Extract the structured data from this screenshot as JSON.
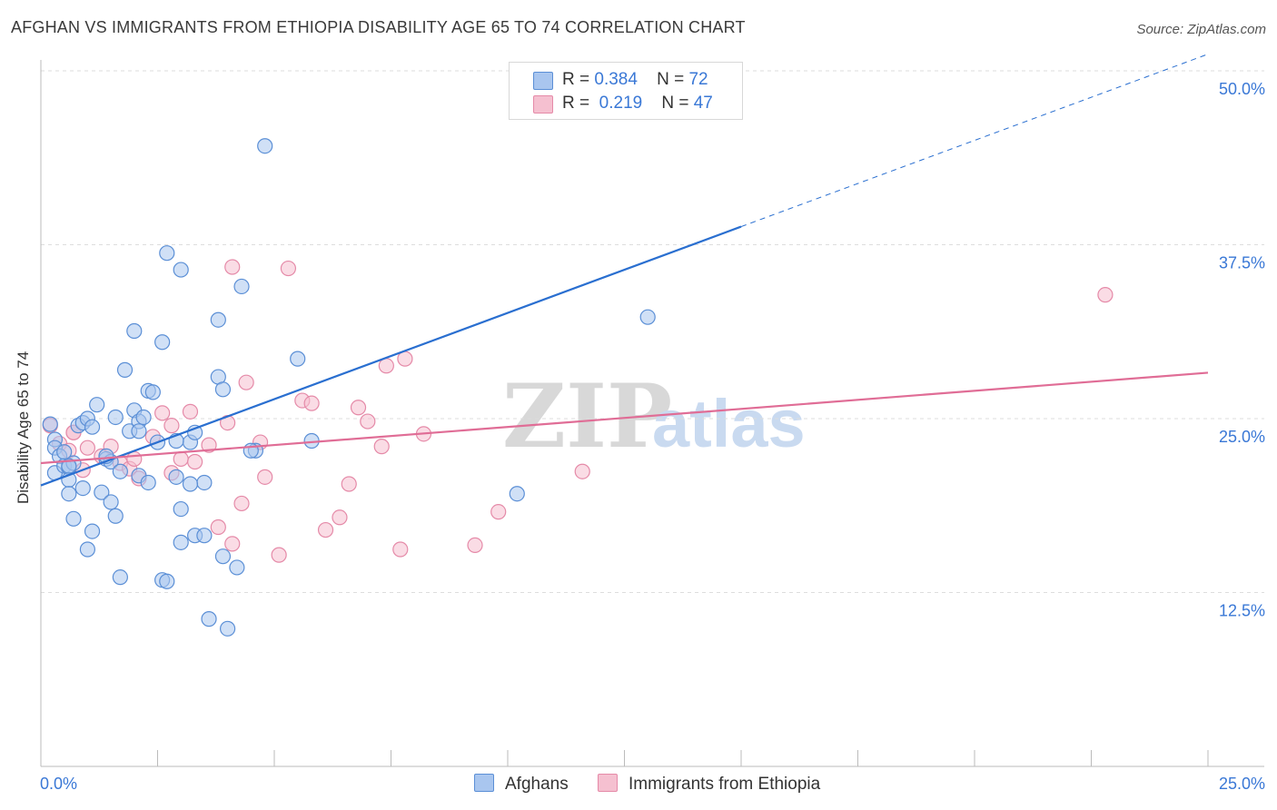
{
  "title": "AFGHAN VS IMMIGRANTS FROM ETHIOPIA DISABILITY AGE 65 TO 74 CORRELATION CHART",
  "source": "Source: ZipAtlas.com",
  "legend": {
    "r_label": "R =",
    "n_label": "N =",
    "afghans": {
      "r": "0.384",
      "n": "72"
    },
    "ethiopia": {
      "r": "0.219",
      "n": "47"
    }
  },
  "colors": {
    "blue_fill": "#a9c6ef",
    "blue_stroke": "#5b8fd6",
    "blue_line": "#2a6fd0",
    "pink_fill": "#f5c0d0",
    "pink_stroke": "#e58aa8",
    "pink_line": "#e06d96",
    "tick_text": "#3a78d6",
    "grid": "#dddddd"
  },
  "chart_data": {
    "type": "scatter",
    "title": "AFGHAN VS IMMIGRANTS FROM ETHIOPIA DISABILITY AGE 65 TO 74 CORRELATION CHART",
    "xlabel": "",
    "ylabel": "Disability Age 65 to 74",
    "xlim": [
      0,
      25
    ],
    "ylim": [
      0,
      50
    ],
    "x_tick_labels": [
      "0.0%",
      "25.0%"
    ],
    "y_ticks": [
      12.5,
      25.0,
      37.5,
      50.0
    ],
    "y_tick_labels": [
      "12.5%",
      "25.0%",
      "37.5%",
      "50.0%"
    ],
    "watermark": {
      "zip": "ZIP",
      "atlas": "atlas"
    },
    "series": [
      {
        "name": "Afghans",
        "color": "#5b8fd6",
        "trend": {
          "x0": 0,
          "y0": 20.2,
          "x1": 15,
          "y1": 38.8,
          "dashed_to_x": 25,
          "dashed_to_y": 51.2
        },
        "points": [
          [
            0.2,
            24.6
          ],
          [
            0.3,
            23.5
          ],
          [
            0.3,
            22.9
          ],
          [
            0.4,
            22.3
          ],
          [
            0.5,
            22.6
          ],
          [
            0.3,
            21.1
          ],
          [
            0.5,
            21.6
          ],
          [
            0.6,
            21.5
          ],
          [
            0.7,
            21.8
          ],
          [
            0.8,
            24.5
          ],
          [
            0.9,
            24.7
          ],
          [
            1.0,
            25.0
          ],
          [
            1.1,
            24.4
          ],
          [
            1.2,
            26.0
          ],
          [
            1.4,
            22.1
          ],
          [
            1.5,
            21.9
          ],
          [
            1.6,
            25.1
          ],
          [
            1.7,
            21.2
          ],
          [
            1.8,
            28.5
          ],
          [
            1.9,
            24.1
          ],
          [
            2.0,
            25.6
          ],
          [
            2.1,
            24.8
          ],
          [
            2.2,
            25.1
          ],
          [
            2.1,
            24.1
          ],
          [
            2.3,
            27.0
          ],
          [
            2.4,
            26.9
          ],
          [
            2.5,
            23.3
          ],
          [
            2.6,
            30.5
          ],
          [
            2.0,
            31.3
          ],
          [
            2.7,
            36.9
          ],
          [
            3.0,
            35.7
          ],
          [
            3.2,
            23.3
          ],
          [
            3.3,
            24.0
          ],
          [
            3.5,
            20.4
          ],
          [
            3.8,
            28.0
          ],
          [
            3.9,
            27.1
          ],
          [
            3.8,
            32.1
          ],
          [
            4.3,
            34.5
          ],
          [
            4.6,
            22.7
          ],
          [
            4.8,
            44.6
          ],
          [
            5.5,
            29.3
          ],
          [
            5.8,
            23.4
          ],
          [
            0.6,
            20.6
          ],
          [
            0.6,
            19.6
          ],
          [
            0.7,
            17.8
          ],
          [
            0.9,
            20.0
          ],
          [
            1.1,
            16.9
          ],
          [
            1.3,
            19.7
          ],
          [
            1.5,
            19.0
          ],
          [
            1.6,
            18.0
          ],
          [
            1.7,
            13.6
          ],
          [
            2.1,
            20.9
          ],
          [
            2.3,
            20.4
          ],
          [
            2.6,
            13.4
          ],
          [
            2.7,
            13.3
          ],
          [
            2.9,
            20.8
          ],
          [
            3.0,
            18.5
          ],
          [
            3.0,
            16.1
          ],
          [
            3.2,
            20.3
          ],
          [
            3.3,
            16.6
          ],
          [
            3.5,
            16.6
          ],
          [
            3.6,
            10.6
          ],
          [
            3.9,
            15.1
          ],
          [
            4.0,
            9.9
          ],
          [
            4.2,
            14.3
          ],
          [
            0.6,
            21.6
          ],
          [
            1.0,
            15.6
          ],
          [
            1.4,
            22.3
          ],
          [
            2.9,
            23.4
          ],
          [
            10.2,
            19.6
          ],
          [
            13.0,
            32.3
          ],
          [
            4.5,
            22.7
          ]
        ]
      },
      {
        "name": "Immigrants from Ethiopia",
        "color": "#e58aa8",
        "trend": {
          "x0": 0,
          "y0": 21.8,
          "x1": 25,
          "y1": 28.3
        },
        "points": [
          [
            0.2,
            24.5
          ],
          [
            0.4,
            23.2
          ],
          [
            0.6,
            22.7
          ],
          [
            0.7,
            24.0
          ],
          [
            0.9,
            21.3
          ],
          [
            1.0,
            22.9
          ],
          [
            1.3,
            22.3
          ],
          [
            1.5,
            23.0
          ],
          [
            1.7,
            21.8
          ],
          [
            1.9,
            21.4
          ],
          [
            2.0,
            22.1
          ],
          [
            2.1,
            20.7
          ],
          [
            2.4,
            23.7
          ],
          [
            2.6,
            25.4
          ],
          [
            2.8,
            24.5
          ],
          [
            3.0,
            22.1
          ],
          [
            3.2,
            25.5
          ],
          [
            3.3,
            21.9
          ],
          [
            3.6,
            23.1
          ],
          [
            3.8,
            17.2
          ],
          [
            4.0,
            24.7
          ],
          [
            4.1,
            16.0
          ],
          [
            4.3,
            18.9
          ],
          [
            4.4,
            27.6
          ],
          [
            4.7,
            23.3
          ],
          [
            4.8,
            20.8
          ],
          [
            5.1,
            15.2
          ],
          [
            5.3,
            35.8
          ],
          [
            5.6,
            26.3
          ],
          [
            5.8,
            26.1
          ],
          [
            6.1,
            17.0
          ],
          [
            6.4,
            17.9
          ],
          [
            6.6,
            20.3
          ],
          [
            6.8,
            25.8
          ],
          [
            7.0,
            24.8
          ],
          [
            7.3,
            23.0
          ],
          [
            7.4,
            28.8
          ],
          [
            7.7,
            15.6
          ],
          [
            7.8,
            29.3
          ],
          [
            8.2,
            23.9
          ],
          [
            9.3,
            15.9
          ],
          [
            9.8,
            18.3
          ],
          [
            11.6,
            21.2
          ],
          [
            22.8,
            33.9
          ],
          [
            4.1,
            35.9
          ],
          [
            2.8,
            21.1
          ],
          [
            0.7,
            24.0
          ]
        ]
      }
    ]
  }
}
